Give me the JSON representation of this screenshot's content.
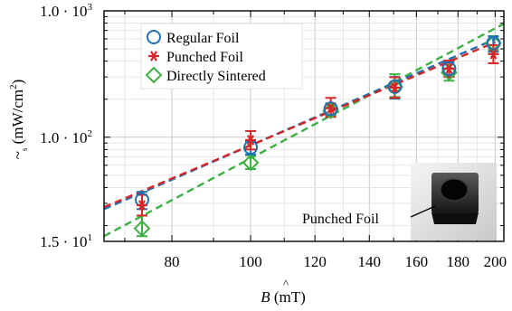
{
  "chart_data": {
    "type": "scatter",
    "xlabel_main": "B",
    "xlabel_hat": "^",
    "xlabel_unit": " (mT)",
    "ylabel_main": "~",
    "ylabel_sub": "s",
    "ylabel_unit": " (mW/cm",
    "ylabel_sup": "2",
    "ylabel_close": ")",
    "x_scale": "log",
    "y_scale": "log",
    "xlim": [
      66,
      205
    ],
    "ylim": [
      15,
      1000
    ],
    "x_ticks": [
      {
        "value": 80,
        "label": "80"
      },
      {
        "value": 100,
        "label": "100"
      },
      {
        "value": 120,
        "label": "120"
      },
      {
        "value": 140,
        "label": "140"
      },
      {
        "value": 160,
        "label": "160"
      },
      {
        "value": 180,
        "label": "180"
      },
      {
        "value": 200,
        "label": "200"
      }
    ],
    "y_ticks": [
      {
        "value": 15,
        "base": "1.5 · 10",
        "exp": "1"
      },
      {
        "value": 100,
        "base": "1.0 · 10",
        "exp": "2"
      },
      {
        "value": 1000,
        "base": "1.0 · 10",
        "exp": "3"
      }
    ],
    "grid": true,
    "legend_position": "top-left",
    "series": [
      {
        "name": "Regular Foil",
        "marker": "circle",
        "color": "#1f6fb5",
        "x": [
          73.5,
          100,
          125.5,
          150.5,
          175.5,
          199
        ],
        "y": [
          32,
          83,
          168,
          252,
          349,
          555
        ],
        "err_low": [
          27,
          73,
          151,
          202,
          305,
          475
        ],
        "err_high": [
          37,
          92,
          185,
          300,
          393,
          630
        ],
        "fit": {
          "x": [
            66,
            200
          ],
          "y": [
            27,
            598
          ]
        }
      },
      {
        "name": "Punched Foil",
        "marker": "asterisk",
        "color": "#d62728",
        "x": [
          73.5,
          100,
          125.5,
          150.5,
          175.5,
          199
        ],
        "y": [
          29,
          95,
          170,
          247,
          350,
          455
        ],
        "err_low": [
          24,
          80,
          145,
          205,
          300,
          385
        ],
        "err_high": [
          35,
          112,
          205,
          298,
          405,
          535
        ],
        "fit": {
          "x": [
            66,
            200
          ],
          "y": [
            28,
            565
          ]
        }
      },
      {
        "name": "Directly Sintered",
        "marker": "diamond",
        "color": "#3cb043",
        "x": [
          73.5,
          100,
          125.5,
          150.5,
          175.5,
          199
        ],
        "y": [
          19,
          63,
          162,
          250,
          325,
          555
        ],
        "err_low": [
          16.5,
          56,
          147,
          208,
          280,
          490
        ],
        "err_high": [
          24,
          72,
          180,
          315,
          375,
          625
        ],
        "fit": {
          "x": [
            66,
            205
          ],
          "y": [
            16.5,
            790
          ]
        }
      }
    ]
  },
  "inset": {
    "label": "Punched Foil"
  }
}
